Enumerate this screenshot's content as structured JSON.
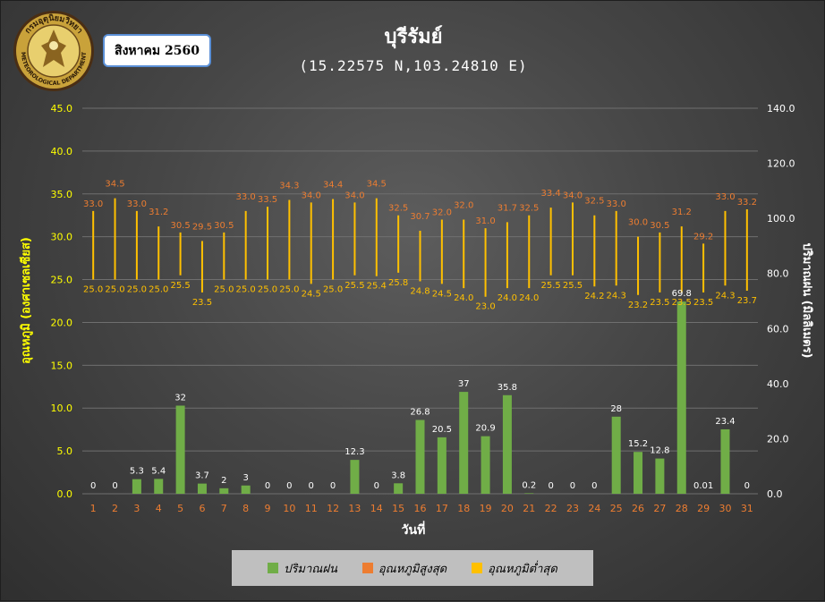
{
  "header": {
    "title": "บุรีรัมย์",
    "subtitle": "(15.22575 N,103.24810 E)",
    "period_label": "สิงหาคม 2560",
    "logo": {
      "icon": "meteorological-department-seal",
      "top_text": "กรมอุตุนิยมวิทยา",
      "bottom_text": "METEOROLOGICAL DEPARTMENT"
    }
  },
  "colors": {
    "rain": "#70ad47",
    "temp_max": "#ed7d31",
    "temp_min": "#ffc000",
    "axis_left": "#ffff00",
    "axis_right": "#ffffff",
    "x_tick": "#ed7d31"
  },
  "chart_data": {
    "type": "bar",
    "xlabel": "วันที่",
    "ylabel_left": "อุณหภูมิ (องศาเซลเซียส)",
    "ylabel_right": "ปริมาณฝน (มิลลิเมตร)",
    "ylim_left": [
      0,
      45
    ],
    "ylim_right": [
      0,
      140
    ],
    "yticks_left": [
      "0.0",
      "5.0",
      "10.0",
      "15.0",
      "20.0",
      "25.0",
      "30.0",
      "35.0",
      "40.0",
      "45.0"
    ],
    "yticks_right": [
      "0.0",
      "20.0",
      "40.0",
      "60.0",
      "80.0",
      "100.0",
      "120.0",
      "140.0"
    ],
    "categories": [
      "1",
      "2",
      "3",
      "4",
      "5",
      "6",
      "7",
      "8",
      "9",
      "10",
      "11",
      "12",
      "13",
      "14",
      "15",
      "16",
      "17",
      "18",
      "19",
      "20",
      "21",
      "22",
      "23",
      "24",
      "25",
      "26",
      "27",
      "28",
      "29",
      "30",
      "31"
    ],
    "grid": true,
    "legend_position": "bottom",
    "series": [
      {
        "name": "ปริมาณฝน",
        "kind": "bar",
        "axis": "right",
        "values": [
          0,
          0,
          5.3,
          5.4,
          32,
          3.7,
          2,
          3,
          0,
          0,
          0,
          0,
          12.3,
          0,
          3.8,
          26.8,
          20.5,
          37,
          20.9,
          35.8,
          0.2,
          0,
          0,
          0,
          28,
          15.2,
          12.8,
          69.8,
          0.01,
          23.4,
          0
        ],
        "labels": [
          "0",
          "0",
          "5.3",
          "5.4",
          "32",
          "3.7",
          "2",
          "3",
          "0",
          "0",
          "0",
          "0",
          "12.3",
          "0",
          "3.8",
          "26.8",
          "20.5",
          "37",
          "20.9",
          "35.8",
          "0.2",
          "0",
          "0",
          "0",
          "28",
          "15.2",
          "12.8",
          "69.8",
          "0.01",
          "23.4",
          "0"
        ]
      },
      {
        "name": "อุณหภูมิสูงสุด",
        "kind": "range-high",
        "axis": "left",
        "values": [
          33.0,
          34.5,
          33.0,
          31.2,
          30.5,
          29.5,
          30.5,
          33.0,
          33.5,
          34.3,
          34.0,
          34.4,
          34.0,
          34.5,
          32.5,
          30.7,
          32.0,
          32.0,
          31.0,
          31.7,
          32.5,
          33.4,
          34.0,
          32.5,
          33.0,
          30.0,
          30.5,
          31.2,
          29.2,
          33.0,
          33.2
        ],
        "labels": [
          "33.0",
          "34.5",
          "33.0",
          "31.2",
          "30.5",
          "29.5",
          "30.5",
          "33.0",
          "33.5",
          "34.3",
          "34.0",
          "34.4",
          "34.0",
          "34.5",
          "32.5",
          "30.7",
          "32.0",
          "32.0",
          "31.0",
          "31.7",
          "32.5",
          "33.4",
          "34.0",
          "32.5",
          "33.0",
          "30.0",
          "30.5",
          "31.2",
          "29.2",
          "33.0",
          "33.2"
        ]
      },
      {
        "name": "อุณหภูมิต่ำสุด",
        "kind": "range-low",
        "axis": "left",
        "values": [
          25.0,
          25.0,
          25.0,
          25.0,
          25.5,
          23.5,
          25.0,
          25.0,
          25.0,
          25.0,
          24.5,
          25.0,
          25.5,
          25.4,
          25.8,
          24.8,
          24.5,
          24.0,
          23.0,
          24.0,
          24.0,
          25.5,
          25.5,
          24.2,
          24.3,
          23.2,
          23.5,
          23.5,
          23.5,
          24.3,
          23.7
        ],
        "labels": [
          "25.0",
          "25.0",
          "25.0",
          "25.0",
          "25.5",
          "23.5",
          "25.0",
          "25.0",
          "25.0",
          "25.0",
          "24.5",
          "25.0",
          "25.5",
          "25.4",
          "25.8",
          "24.8",
          "24.5",
          "24.0",
          "23.0",
          "24.0",
          "24.0",
          "25.5",
          "25.5",
          "24.2",
          "24.3",
          "23.2",
          "23.5",
          "23.5",
          "23.5",
          "24.3",
          "23.7"
        ]
      }
    ]
  }
}
